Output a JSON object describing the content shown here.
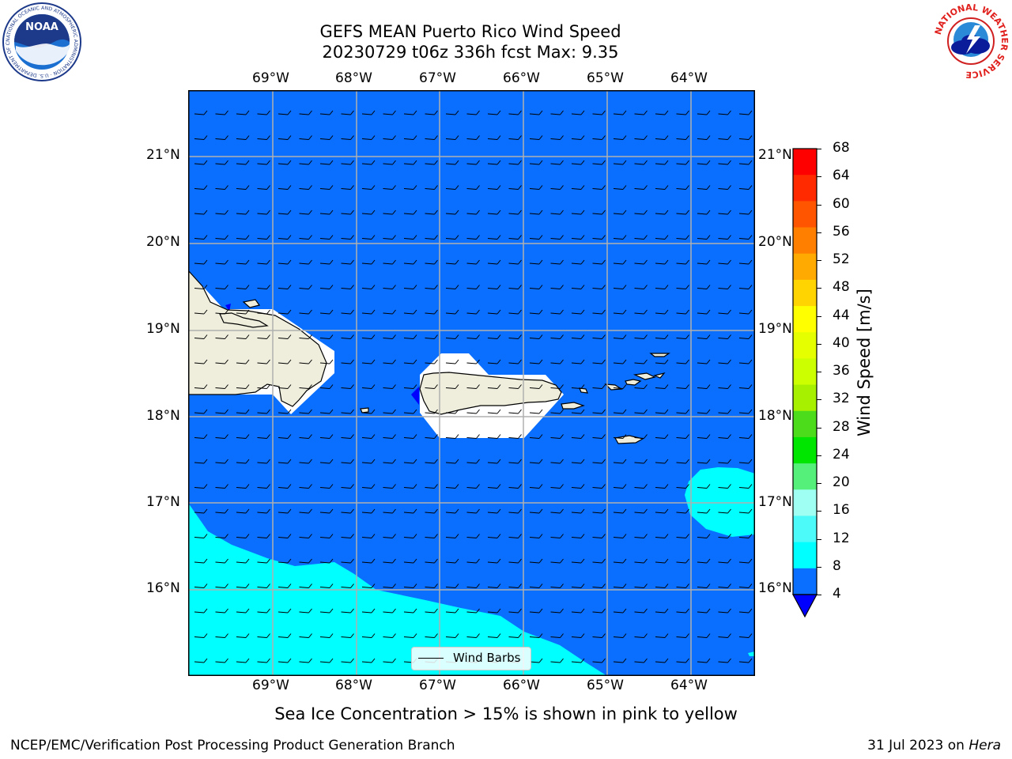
{
  "title": {
    "line1": "GEFS MEAN Puerto Rico Wind Speed",
    "line2": "20230729 t06z 336h fcst   Max: 9.35"
  },
  "lon_ticks": [
    "69°W",
    "68°W",
    "67°W",
    "66°W",
    "65°W",
    "64°W"
  ],
  "lat_ticks": [
    "21°N",
    "20°N",
    "19°N",
    "18°N",
    "17°N",
    "16°N"
  ],
  "colorbar": {
    "label": "Wind Speed [m/s]",
    "ticks": [
      "68",
      "64",
      "60",
      "56",
      "52",
      "48",
      "44",
      "40",
      "36",
      "32",
      "28",
      "24",
      "20",
      "16",
      "12",
      "8",
      "4"
    ],
    "colors": [
      "#ff0000",
      "#ff2a00",
      "#ff5500",
      "#ff8000",
      "#ffaa00",
      "#ffd400",
      "#ffff00",
      "#e6ff00",
      "#ccff00",
      "#a6f000",
      "#4cdc1c",
      "#00e600",
      "#55f07a",
      "#9ffff2",
      "#4dfafa",
      "#00ffff",
      "#0a6fff"
    ],
    "extend_color": "#0000ff"
  },
  "map_colors": {
    "ocean_main": "#0a6fff",
    "ocean_light": "#00ffff",
    "land": "#efeedd",
    "mask": "#ffffff",
    "grid": "#b0b0b0"
  },
  "legend": {
    "label": "Wind Barbs"
  },
  "note": "Sea Ice Concentration > 15% is shown in pink to yellow",
  "footer": {
    "left": "NCEP/EMC/Verification Post Processing Product Generation Branch",
    "date": "31 Jul 2023 on ",
    "machine": "Hera"
  },
  "logos": {
    "noaa_text": "NOAA",
    "noaa_ring": "NATIONAL OCEANIC AND ATMOSPHERIC ADMINISTRATION · U.S. DEPARTMENT OF COMMERCE",
    "nws_ring": "NATIONAL WEATHER SERVICE"
  }
}
